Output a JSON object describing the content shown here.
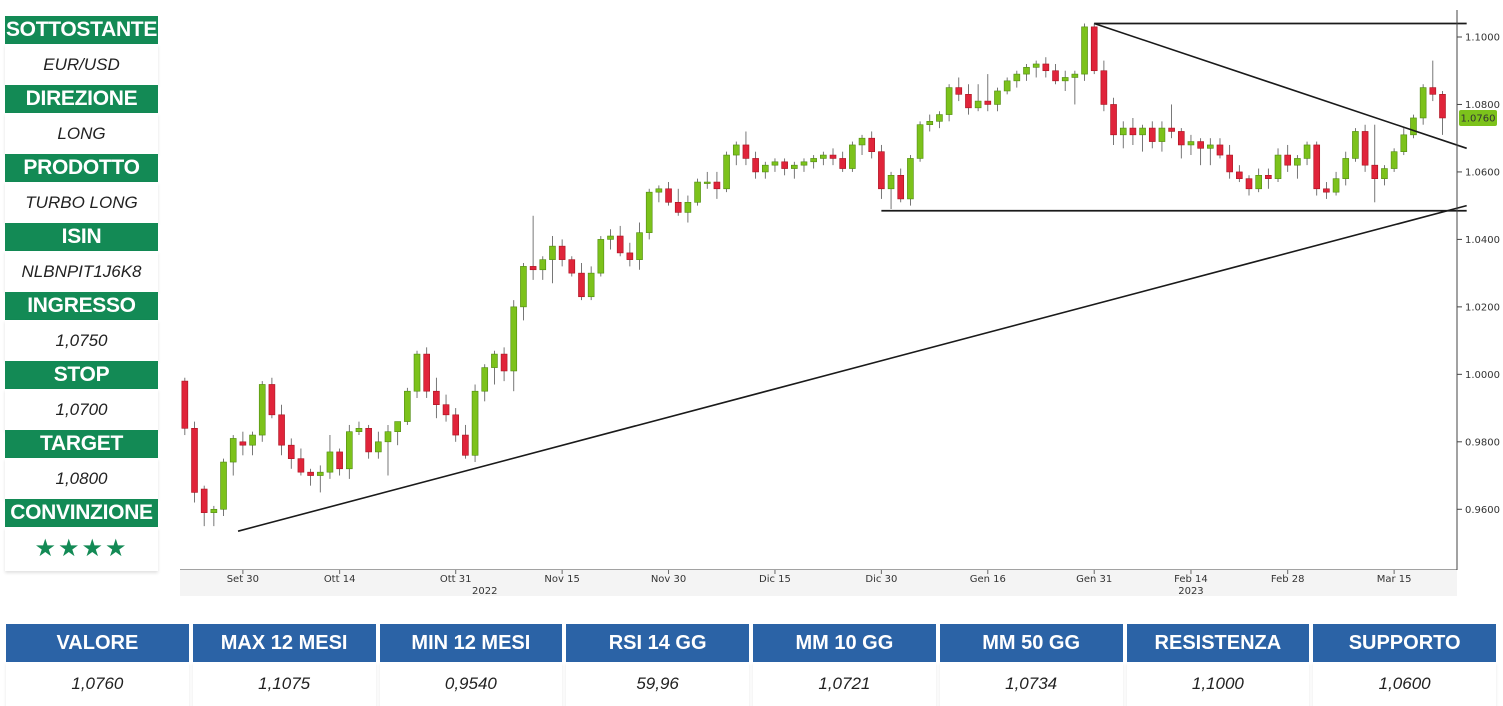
{
  "sidebar": {
    "items": [
      {
        "label": "SOTTOSTANTE",
        "value": "EUR/USD"
      },
      {
        "label": "DIREZIONE",
        "value": "LONG"
      },
      {
        "label": "PRODOTTO",
        "value": "TURBO LONG"
      },
      {
        "label": "ISIN",
        "value": "NLBNPIT1J6K8"
      },
      {
        "label": "INGRESSO",
        "value": "1,0750"
      },
      {
        "label": "STOP",
        "value": "1,0700"
      },
      {
        "label": "TARGET",
        "value": "1,0800"
      }
    ],
    "conviction_label": "CONVINZIONE",
    "conviction_stars": "★★★★"
  },
  "stats": [
    {
      "label": "VALORE",
      "value": "1,0760"
    },
    {
      "label": "MAX 12 MESI",
      "value": "1,1075"
    },
    {
      "label": "MIN 12 MESI",
      "value": "0,9540"
    },
    {
      "label": "RSI 14 GG",
      "value": "59,96"
    },
    {
      "label": "MM 10 GG",
      "value": "1,0721"
    },
    {
      "label": "MM 50 GG",
      "value": "1,0734"
    },
    {
      "label": "RESISTENZA",
      "value": "1,1000"
    },
    {
      "label": "SUPPORTO",
      "value": "1,0600"
    }
  ],
  "chart_data": {
    "type": "candlestick",
    "ylim": [
      0.942,
      1.108
    ],
    "y_ticks": [
      "1.1000",
      "1.0800",
      "1.0600",
      "1.0400",
      "1.0200",
      "1.0000",
      "0.9800",
      "0.9600"
    ],
    "y_tick_values": [
      1.1,
      1.08,
      1.06,
      1.04,
      1.02,
      1.0,
      0.98,
      0.96
    ],
    "x_ticks": [
      {
        "label": "Set 30",
        "index": 6
      },
      {
        "label": "Ott 14",
        "index": 16
      },
      {
        "label": "Ott 31",
        "index": 28
      },
      {
        "label": "Nov 15",
        "index": 39
      },
      {
        "label": "Nov 30",
        "index": 50
      },
      {
        "label": "Dic 15",
        "index": 61
      },
      {
        "label": "Dic 30",
        "index": 72
      },
      {
        "label": "Gen 16",
        "index": 83
      },
      {
        "label": "Gen 31",
        "index": 94
      },
      {
        "label": "Feb 14",
        "index": 104
      },
      {
        "label": "Feb 28",
        "index": 114
      },
      {
        "label": "Mar 15",
        "index": 125
      }
    ],
    "year_labels": [
      {
        "label": "2022",
        "index": 31
      },
      {
        "label": "2023",
        "index": 104
      }
    ],
    "last_value_label": "1.0760",
    "last_value": 1.076,
    "colors": {
      "up": "#7cc21b",
      "down": "#e0243a",
      "lines": "#1a1a1a",
      "badge": "#7cc21b"
    },
    "candles": [
      [
        0.998,
        0.999,
        0.982,
        0.984
      ],
      [
        0.984,
        0.986,
        0.962,
        0.965
      ],
      [
        0.966,
        0.967,
        0.955,
        0.959
      ],
      [
        0.959,
        0.961,
        0.955,
        0.96
      ],
      [
        0.96,
        0.975,
        0.958,
        0.974
      ],
      [
        0.974,
        0.982,
        0.97,
        0.981
      ],
      [
        0.98,
        0.983,
        0.976,
        0.979
      ],
      [
        0.979,
        0.983,
        0.976,
        0.982
      ],
      [
        0.982,
        0.998,
        0.98,
        0.997
      ],
      [
        0.997,
        0.999,
        0.987,
        0.988
      ],
      [
        0.988,
        0.991,
        0.976,
        0.979
      ],
      [
        0.979,
        0.981,
        0.972,
        0.975
      ],
      [
        0.975,
        0.978,
        0.97,
        0.971
      ],
      [
        0.971,
        0.972,
        0.967,
        0.97
      ],
      [
        0.97,
        0.973,
        0.965,
        0.971
      ],
      [
        0.971,
        0.982,
        0.969,
        0.977
      ],
      [
        0.977,
        0.978,
        0.97,
        0.972
      ],
      [
        0.972,
        0.985,
        0.969,
        0.983
      ],
      [
        0.983,
        0.986,
        0.982,
        0.984
      ],
      [
        0.984,
        0.985,
        0.975,
        0.977
      ],
      [
        0.977,
        0.983,
        0.975,
        0.98
      ],
      [
        0.98,
        0.985,
        0.97,
        0.983
      ],
      [
        0.983,
        0.986,
        0.979,
        0.986
      ],
      [
        0.986,
        0.996,
        0.985,
        0.995
      ],
      [
        0.995,
        1.007,
        0.993,
        1.006
      ],
      [
        1.006,
        1.008,
        0.993,
        0.995
      ],
      [
        0.995,
        0.999,
        0.987,
        0.991
      ],
      [
        0.991,
        0.994,
        0.986,
        0.988
      ],
      [
        0.988,
        0.99,
        0.98,
        0.982
      ],
      [
        0.982,
        0.985,
        0.975,
        0.976
      ],
      [
        0.976,
        0.997,
        0.974,
        0.995
      ],
      [
        0.995,
        1.003,
        0.992,
        1.002
      ],
      [
        1.002,
        1.007,
        0.997,
        1.006
      ],
      [
        1.006,
        1.008,
        0.998,
        1.001
      ],
      [
        1.001,
        1.022,
        0.995,
        1.02
      ],
      [
        1.02,
        1.033,
        1.016,
        1.032
      ],
      [
        1.032,
        1.047,
        1.028,
        1.031
      ],
      [
        1.031,
        1.035,
        1.028,
        1.034
      ],
      [
        1.034,
        1.041,
        1.027,
        1.038
      ],
      [
        1.038,
        1.04,
        1.032,
        1.034
      ],
      [
        1.034,
        1.035,
        1.029,
        1.03
      ],
      [
        1.03,
        1.033,
        1.022,
        1.023
      ],
      [
        1.023,
        1.032,
        1.022,
        1.03
      ],
      [
        1.03,
        1.041,
        1.029,
        1.04
      ],
      [
        1.04,
        1.043,
        1.037,
        1.041
      ],
      [
        1.041,
        1.044,
        1.035,
        1.036
      ],
      [
        1.036,
        1.039,
        1.032,
        1.034
      ],
      [
        1.034,
        1.045,
        1.031,
        1.042
      ],
      [
        1.042,
        1.055,
        1.04,
        1.054
      ],
      [
        1.054,
        1.056,
        1.051,
        1.055
      ],
      [
        1.055,
        1.057,
        1.05,
        1.051
      ],
      [
        1.051,
        1.055,
        1.047,
        1.048
      ],
      [
        1.048,
        1.053,
        1.045,
        1.051
      ],
      [
        1.051,
        1.058,
        1.05,
        1.057
      ],
      [
        1.057,
        1.06,
        1.055,
        1.057
      ],
      [
        1.057,
        1.06,
        1.052,
        1.055
      ],
      [
        1.055,
        1.066,
        1.054,
        1.065
      ],
      [
        1.065,
        1.069,
        1.062,
        1.068
      ],
      [
        1.068,
        1.072,
        1.062,
        1.064
      ],
      [
        1.064,
        1.066,
        1.058,
        1.06
      ],
      [
        1.06,
        1.063,
        1.058,
        1.062
      ],
      [
        1.062,
        1.064,
        1.06,
        1.063
      ],
      [
        1.063,
        1.064,
        1.059,
        1.061
      ],
      [
        1.061,
        1.063,
        1.058,
        1.062
      ],
      [
        1.062,
        1.064,
        1.06,
        1.063
      ],
      [
        1.063,
        1.065,
        1.061,
        1.064
      ],
      [
        1.064,
        1.066,
        1.062,
        1.065
      ],
      [
        1.065,
        1.067,
        1.062,
        1.064
      ],
      [
        1.064,
        1.066,
        1.06,
        1.061
      ],
      [
        1.061,
        1.069,
        1.06,
        1.068
      ],
      [
        1.068,
        1.071,
        1.065,
        1.07
      ],
      [
        1.07,
        1.072,
        1.064,
        1.066
      ],
      [
        1.066,
        1.068,
        1.052,
        1.055
      ],
      [
        1.055,
        1.06,
        1.049,
        1.059
      ],
      [
        1.059,
        1.061,
        1.051,
        1.052
      ],
      [
        1.052,
        1.065,
        1.05,
        1.064
      ],
      [
        1.064,
        1.075,
        1.063,
        1.074
      ],
      [
        1.074,
        1.077,
        1.072,
        1.075
      ],
      [
        1.075,
        1.078,
        1.073,
        1.077
      ],
      [
        1.077,
        1.086,
        1.075,
        1.085
      ],
      [
        1.085,
        1.088,
        1.081,
        1.083
      ],
      [
        1.083,
        1.086,
        1.077,
        1.079
      ],
      [
        1.079,
        1.086,
        1.078,
        1.081
      ],
      [
        1.081,
        1.089,
        1.078,
        1.08
      ],
      [
        1.08,
        1.085,
        1.078,
        1.084
      ],
      [
        1.084,
        1.088,
        1.083,
        1.087
      ],
      [
        1.087,
        1.09,
        1.085,
        1.089
      ],
      [
        1.089,
        1.092,
        1.087,
        1.091
      ],
      [
        1.091,
        1.093,
        1.088,
        1.092
      ],
      [
        1.092,
        1.094,
        1.088,
        1.09
      ],
      [
        1.09,
        1.092,
        1.086,
        1.087
      ],
      [
        1.087,
        1.09,
        1.084,
        1.088
      ],
      [
        1.088,
        1.09,
        1.08,
        1.089
      ],
      [
        1.089,
        1.104,
        1.087,
        1.103
      ],
      [
        1.103,
        1.104,
        1.089,
        1.09
      ],
      [
        1.09,
        1.093,
        1.078,
        1.08
      ],
      [
        1.08,
        1.082,
        1.068,
        1.071
      ],
      [
        1.071,
        1.075,
        1.067,
        1.073
      ],
      [
        1.073,
        1.076,
        1.068,
        1.071
      ],
      [
        1.071,
        1.074,
        1.066,
        1.073
      ],
      [
        1.073,
        1.075,
        1.067,
        1.069
      ],
      [
        1.069,
        1.075,
        1.066,
        1.073
      ],
      [
        1.073,
        1.08,
        1.07,
        1.072
      ],
      [
        1.072,
        1.073,
        1.064,
        1.068
      ],
      [
        1.068,
        1.071,
        1.065,
        1.069
      ],
      [
        1.069,
        1.07,
        1.062,
        1.067
      ],
      [
        1.067,
        1.07,
        1.062,
        1.068
      ],
      [
        1.068,
        1.07,
        1.064,
        1.065
      ],
      [
        1.065,
        1.068,
        1.058,
        1.06
      ],
      [
        1.06,
        1.062,
        1.057,
        1.058
      ],
      [
        1.058,
        1.059,
        1.053,
        1.055
      ],
      [
        1.055,
        1.061,
        1.054,
        1.059
      ],
      [
        1.059,
        1.061,
        1.055,
        1.058
      ],
      [
        1.058,
        1.067,
        1.057,
        1.065
      ],
      [
        1.065,
        1.068,
        1.06,
        1.062
      ],
      [
        1.062,
        1.065,
        1.058,
        1.064
      ],
      [
        1.064,
        1.069,
        1.062,
        1.068
      ],
      [
        1.068,
        1.069,
        1.053,
        1.055
      ],
      [
        1.055,
        1.057,
        1.052,
        1.054
      ],
      [
        1.054,
        1.06,
        1.053,
        1.058
      ],
      [
        1.058,
        1.066,
        1.056,
        1.064
      ],
      [
        1.064,
        1.073,
        1.063,
        1.072
      ],
      [
        1.072,
        1.074,
        1.06,
        1.062
      ],
      [
        1.062,
        1.074,
        1.051,
        1.058
      ],
      [
        1.058,
        1.062,
        1.056,
        1.061
      ],
      [
        1.061,
        1.067,
        1.06,
        1.066
      ],
      [
        1.066,
        1.073,
        1.065,
        1.071
      ],
      [
        1.071,
        1.077,
        1.07,
        1.076
      ],
      [
        1.076,
        1.086,
        1.074,
        1.085
      ],
      [
        1.085,
        1.093,
        1.081,
        1.083
      ],
      [
        1.083,
        1.084,
        1.071,
        1.076
      ]
    ],
    "trendlines": [
      {
        "from": {
          "index": 5.5,
          "value": 0.9535
        },
        "to": {
          "index": 132.5,
          "value": 1.05
        }
      },
      {
        "from": {
          "index": 94,
          "value": 1.104
        },
        "to": {
          "index": 132.5,
          "value": 1.067
        }
      }
    ],
    "horizontal_lines": [
      {
        "value": 1.104,
        "from_index": 94,
        "to_index": 132.5
      },
      {
        "value": 1.0485,
        "from_index": 72,
        "to_index": 132.5
      }
    ]
  }
}
